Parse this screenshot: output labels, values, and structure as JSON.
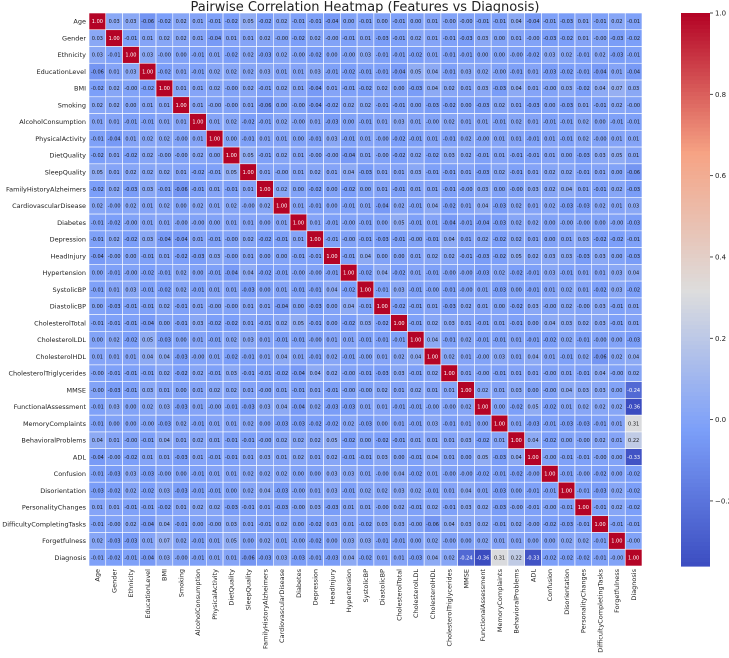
{
  "chart_data": {
    "type": "heatmap",
    "title": "Pairwise Correlation Heatmap (Features vs Diagnosis)",
    "labels": [
      "Age",
      "Gender",
      "Ethnicity",
      "EducationLevel",
      "BMI",
      "Smoking",
      "AlcoholConsumption",
      "PhysicalActivity",
      "DietQuality",
      "SleepQuality",
      "FamilyHistoryAlzheimers",
      "CardiovascularDisease",
      "Diabetes",
      "Depression",
      "HeadInjury",
      "Hypertension",
      "SystolicBP",
      "DiastolicBP",
      "CholesterolTotal",
      "CholesterolLDL",
      "CholesterolHDL",
      "CholesterolTriglycerides",
      "MMSE",
      "FunctionalAssessment",
      "MemoryComplaints",
      "BehavioralProblems",
      "ADL",
      "Confusion",
      "Disorientation",
      "PersonalityChanges",
      "DifficultyCompletingTasks",
      "Forgetfulness",
      "Diagnosis"
    ],
    "matrix": [
      [
        "1.00",
        "0.03",
        "0.03",
        "-0.06",
        "-0.02",
        "0.02",
        "0.01",
        "-0.01",
        "-0.02",
        "0.05",
        "-0.02",
        "0.02",
        "-0.01",
        "-0.01",
        "-0.04",
        "0.00",
        "-0.01",
        "0.00",
        "-0.01",
        "0.00",
        "0.01",
        "-0.00",
        "-0.00",
        "-0.01",
        "-0.01",
        "0.04",
        "-0.04",
        "-0.01",
        "-0.03",
        "0.01",
        "-0.01",
        "0.02",
        "-0.01"
      ],
      [
        "0.03",
        "1.00",
        "-0.01",
        "0.01",
        "0.02",
        "0.02",
        "0.01",
        "-0.04",
        "0.01",
        "0.01",
        "0.02",
        "-0.00",
        "-0.02",
        "0.02",
        "-0.00",
        "-0.01",
        "0.01",
        "-0.03",
        "-0.01",
        "0.02",
        "0.01",
        "-0.01",
        "-0.03",
        "0.03",
        "0.00",
        "0.01",
        "-0.00",
        "-0.03",
        "-0.02",
        "0.01",
        "-0.00",
        "-0.03",
        "-0.02"
      ],
      [
        "0.03",
        "-0.01",
        "1.00",
        "0.03",
        "-0.00",
        "0.00",
        "-0.01",
        "0.01",
        "-0.02",
        "0.02",
        "-0.03",
        "0.02",
        "-0.00",
        "-0.02",
        "0.00",
        "-0.00",
        "0.03",
        "-0.01",
        "-0.01",
        "-0.02",
        "0.01",
        "-0.01",
        "-0.01",
        "0.00",
        "0.00",
        "-0.00",
        "-0.02",
        "0.03",
        "0.02",
        "-0.01",
        "0.02",
        "-0.03",
        "-0.01"
      ],
      [
        "-0.06",
        "0.01",
        "0.03",
        "1.00",
        "-0.02",
        "0.01",
        "-0.01",
        "0.02",
        "0.02",
        "0.02",
        "0.03",
        "0.01",
        "0.01",
        "0.03",
        "-0.01",
        "-0.02",
        "-0.01",
        "-0.01",
        "-0.04",
        "0.05",
        "0.04",
        "-0.01",
        "0.03",
        "0.02",
        "-0.00",
        "-0.01",
        "0.01",
        "-0.03",
        "-0.02",
        "-0.01",
        "-0.04",
        "0.01",
        "-0.04"
      ],
      [
        "-0.02",
        "0.02",
        "-0.00",
        "-0.02",
        "1.00",
        "0.01",
        "0.01",
        "0.02",
        "-0.00",
        "0.02",
        "-0.01",
        "0.02",
        "0.01",
        "-0.04",
        "0.01",
        "-0.01",
        "-0.02",
        "0.02",
        "0.00",
        "-0.03",
        "0.04",
        "0.02",
        "0.01",
        "0.03",
        "-0.03",
        "0.04",
        "0.01",
        "-0.00",
        "0.03",
        "-0.02",
        "0.04",
        "0.07",
        "0.03"
      ],
      [
        "0.02",
        "0.02",
        "0.00",
        "0.01",
        "0.01",
        "1.00",
        "0.01",
        "-0.00",
        "-0.00",
        "0.01",
        "-0.06",
        "0.00",
        "-0.00",
        "-0.04",
        "-0.02",
        "0.02",
        "0.02",
        "-0.01",
        "-0.01",
        "0.00",
        "-0.03",
        "-0.02",
        "0.00",
        "-0.03",
        "0.02",
        "0.01",
        "-0.03",
        "0.00",
        "-0.03",
        "0.01",
        "-0.01",
        "0.02",
        "-0.00"
      ],
      [
        "0.01",
        "0.01",
        "-0.01",
        "-0.01",
        "0.01",
        "0.01",
        "1.00",
        "0.01",
        "0.02",
        "-0.02",
        "-0.01",
        "0.02",
        "-0.00",
        "0.01",
        "-0.03",
        "0.00",
        "-0.01",
        "0.01",
        "0.03",
        "0.01",
        "-0.00",
        "0.02",
        "0.01",
        "0.01",
        "-0.01",
        "0.02",
        "0.01",
        "-0.01",
        "-0.01",
        "0.02",
        "0.00",
        "-0.01",
        "-0.01"
      ],
      [
        "-0.01",
        "-0.04",
        "0.01",
        "0.02",
        "0.02",
        "-0.00",
        "0.01",
        "1.00",
        "0.00",
        "-0.01",
        "0.01",
        "0.01",
        "0.00",
        "-0.01",
        "0.03",
        "-0.01",
        "0.01",
        "-0.00",
        "-0.02",
        "-0.01",
        "0.01",
        "-0.01",
        "0.02",
        "-0.00",
        "0.01",
        "0.01",
        "-0.01",
        "0.01",
        "-0.01",
        "0.02",
        "-0.00",
        "0.01",
        "0.01"
      ],
      [
        "-0.02",
        "0.01",
        "-0.02",
        "0.02",
        "-0.00",
        "-0.00",
        "0.02",
        "0.00",
        "1.00",
        "0.05",
        "-0.01",
        "0.02",
        "0.01",
        "-0.00",
        "-0.00",
        "-0.04",
        "0.01",
        "-0.00",
        "-0.02",
        "0.02",
        "-0.02",
        "0.03",
        "0.02",
        "-0.01",
        "0.01",
        "-0.01",
        "-0.01",
        "0.01",
        "0.00",
        "-0.03",
        "0.03",
        "0.05",
        "0.01"
      ],
      [
        "0.05",
        "0.01",
        "0.02",
        "0.02",
        "0.02",
        "0.01",
        "-0.02",
        "-0.01",
        "0.05",
        "1.00",
        "0.01",
        "-0.00",
        "0.01",
        "0.02",
        "0.01",
        "0.04",
        "-0.03",
        "0.01",
        "0.01",
        "0.03",
        "-0.01",
        "-0.01",
        "0.01",
        "-0.03",
        "0.02",
        "-0.01",
        "0.01",
        "0.02",
        "0.02",
        "-0.01",
        "0.01",
        "0.00",
        "-0.06"
      ],
      [
        "-0.02",
        "0.02",
        "-0.03",
        "0.03",
        "-0.01",
        "-0.06",
        "-0.01",
        "0.01",
        "-0.01",
        "0.01",
        "1.00",
        "0.02",
        "0.00",
        "-0.02",
        "0.00",
        "-0.02",
        "0.00",
        "0.01",
        "-0.01",
        "0.01",
        "0.01",
        "-0.01",
        "-0.00",
        "0.03",
        "0.00",
        "-0.00",
        "0.03",
        "0.02",
        "0.04",
        "0.01",
        "-0.01",
        "0.02",
        "-0.03"
      ],
      [
        "0.02",
        "-0.00",
        "0.02",
        "0.01",
        "0.02",
        "0.00",
        "0.02",
        "0.01",
        "0.02",
        "-0.00",
        "0.02",
        "1.00",
        "0.01",
        "-0.01",
        "0.00",
        "-0.01",
        "0.01",
        "-0.04",
        "0.02",
        "-0.01",
        "0.04",
        "-0.02",
        "0.01",
        "0.04",
        "-0.03",
        "0.02",
        "0.01",
        "0.02",
        "-0.03",
        "-0.03",
        "0.02",
        "0.01",
        "0.03"
      ],
      [
        "-0.01",
        "-0.02",
        "-0.00",
        "0.01",
        "0.01",
        "-0.00",
        "-0.00",
        "0.00",
        "0.01",
        "0.01",
        "0.00",
        "0.01",
        "1.00",
        "0.01",
        "-0.01",
        "-0.00",
        "-0.01",
        "0.00",
        "0.05",
        "-0.01",
        "0.01",
        "-0.04",
        "-0.01",
        "-0.04",
        "-0.03",
        "0.02",
        "0.02",
        "0.00",
        "-0.00",
        "-0.00",
        "0.00",
        "-0.00",
        "-0.03"
      ],
      [
        "-0.01",
        "0.02",
        "-0.02",
        "0.03",
        "-0.04",
        "-0.04",
        "0.01",
        "-0.01",
        "-0.00",
        "0.02",
        "-0.02",
        "-0.01",
        "0.01",
        "1.00",
        "-0.01",
        "-0.00",
        "-0.01",
        "-0.03",
        "-0.01",
        "-0.00",
        "-0.01",
        "0.04",
        "0.01",
        "0.02",
        "-0.02",
        "0.02",
        "0.01",
        "0.00",
        "0.01",
        "0.03",
        "-0.02",
        "-0.02",
        "-0.01"
      ],
      [
        "-0.04",
        "-0.00",
        "0.00",
        "-0.01",
        "0.01",
        "-0.02",
        "-0.03",
        "0.03",
        "-0.00",
        "0.01",
        "0.00",
        "0.00",
        "-0.01",
        "-0.01",
        "1.00",
        "-0.01",
        "0.04",
        "0.00",
        "0.00",
        "0.01",
        "0.02",
        "0.02",
        "-0.01",
        "-0.03",
        "-0.02",
        "0.05",
        "0.02",
        "0.03",
        "0.03",
        "-0.03",
        "0.03",
        "0.00",
        "-0.03"
      ],
      [
        "0.00",
        "-0.01",
        "-0.00",
        "-0.02",
        "-0.01",
        "0.02",
        "0.00",
        "-0.01",
        "-0.04",
        "0.04",
        "-0.02",
        "-0.01",
        "-0.00",
        "-0.00",
        "-0.01",
        "1.00",
        "-0.02",
        "0.04",
        "-0.02",
        "0.01",
        "-0.01",
        "-0.00",
        "-0.00",
        "-0.03",
        "0.02",
        "-0.02",
        "-0.01",
        "0.03",
        "-0.01",
        "0.01",
        "0.01",
        "0.03",
        "0.04"
      ],
      [
        "-0.01",
        "0.01",
        "0.03",
        "-0.01",
        "-0.02",
        "0.02",
        "-0.01",
        "0.01",
        "0.01",
        "-0.03",
        "0.00",
        "0.01",
        "-0.01",
        "-0.01",
        "0.04",
        "-0.02",
        "1.00",
        "-0.01",
        "0.03",
        "-0.01",
        "-0.00",
        "-0.01",
        "-0.00",
        "0.01",
        "-0.03",
        "0.00",
        "-0.01",
        "0.01",
        "0.02",
        "0.01",
        "-0.02",
        "0.03",
        "-0.02"
      ],
      [
        "0.00",
        "-0.03",
        "-0.01",
        "-0.01",
        "0.02",
        "-0.01",
        "0.01",
        "-0.00",
        "-0.00",
        "0.01",
        "0.01",
        "-0.04",
        "0.00",
        "-0.03",
        "0.00",
        "0.04",
        "-0.01",
        "1.00",
        "-0.02",
        "-0.01",
        "0.01",
        "-0.03",
        "0.02",
        "0.01",
        "0.00",
        "-0.02",
        "0.03",
        "-0.00",
        "0.02",
        "-0.00",
        "0.03",
        "-0.01",
        "0.01"
      ],
      [
        "-0.01",
        "-0.01",
        "-0.01",
        "-0.04",
        "0.00",
        "-0.01",
        "0.03",
        "-0.02",
        "-0.02",
        "0.01",
        "-0.01",
        "0.02",
        "0.05",
        "-0.01",
        "0.00",
        "-0.02",
        "0.03",
        "-0.02",
        "1.00",
        "-0.01",
        "0.02",
        "0.03",
        "0.01",
        "-0.01",
        "0.01",
        "-0.01",
        "0.00",
        "0.04",
        "0.03",
        "0.02",
        "0.03",
        "-0.01",
        "0.01"
      ],
      [
        "0.00",
        "0.02",
        "-0.02",
        "0.05",
        "-0.03",
        "0.00",
        "0.01",
        "-0.01",
        "0.02",
        "0.03",
        "0.01",
        "-0.01",
        "-0.01",
        "-0.00",
        "0.01",
        "0.01",
        "-0.01",
        "-0.01",
        "-0.01",
        "1.00",
        "0.04",
        "-0.01",
        "0.02",
        "-0.01",
        "-0.01",
        "0.01",
        "-0.01",
        "-0.02",
        "0.02",
        "-0.01",
        "-0.00",
        "0.00",
        "-0.03"
      ],
      [
        "0.01",
        "0.01",
        "0.01",
        "0.04",
        "0.04",
        "-0.03",
        "-0.00",
        "0.01",
        "-0.02",
        "-0.01",
        "0.01",
        "0.04",
        "0.01",
        "-0.01",
        "0.02",
        "-0.01",
        "-0.00",
        "0.01",
        "0.02",
        "0.04",
        "1.00",
        "0.02",
        "0.01",
        "-0.00",
        "0.03",
        "0.01",
        "0.04",
        "0.01",
        "-0.01",
        "0.02",
        "-0.06",
        "0.02",
        "0.04"
      ],
      [
        "-0.00",
        "-0.01",
        "-0.01",
        "-0.01",
        "0.02",
        "-0.02",
        "0.02",
        "-0.01",
        "0.03",
        "-0.01",
        "-0.01",
        "-0.02",
        "-0.04",
        "0.04",
        "0.02",
        "-0.00",
        "-0.01",
        "-0.03",
        "0.03",
        "-0.01",
        "0.02",
        "1.00",
        "0.01",
        "-0.00",
        "-0.01",
        "0.01",
        "0.01",
        "-0.00",
        "0.01",
        "-0.01",
        "0.04",
        "-0.00",
        "0.02"
      ],
      [
        "-0.00",
        "-0.03",
        "-0.01",
        "0.03",
        "0.01",
        "0.00",
        "0.01",
        "0.02",
        "0.02",
        "0.01",
        "-0.00",
        "0.01",
        "-0.01",
        "0.01",
        "-0.01",
        "-0.00",
        "-0.00",
        "0.02",
        "0.01",
        "0.02",
        "0.01",
        "0.01",
        "1.00",
        "0.02",
        "0.01",
        "0.03",
        "0.00",
        "-0.00",
        "0.04",
        "0.03",
        "0.03",
        "0.00",
        "-0.24"
      ],
      [
        "-0.01",
        "0.03",
        "0.00",
        "0.02",
        "0.03",
        "-0.03",
        "0.01",
        "-0.00",
        "-0.01",
        "-0.03",
        "0.03",
        "0.04",
        "-0.04",
        "0.02",
        "-0.03",
        "-0.03",
        "0.01",
        "0.01",
        "-0.01",
        "-0.01",
        "-0.00",
        "-0.00",
        "0.02",
        "1.00",
        "0.00",
        "-0.02",
        "0.05",
        "-0.02",
        "0.01",
        "0.02",
        "0.02",
        "0.02",
        "-0.36"
      ],
      [
        "-0.01",
        "0.00",
        "0.00",
        "-0.00",
        "-0.03",
        "0.02",
        "-0.01",
        "0.01",
        "0.01",
        "0.02",
        "0.00",
        "-0.03",
        "-0.03",
        "-0.02",
        "-0.02",
        "0.02",
        "-0.03",
        "0.00",
        "0.01",
        "-0.01",
        "0.03",
        "-0.01",
        "0.01",
        "0.00",
        "1.00",
        "0.01",
        "-0.03",
        "-0.01",
        "-0.03",
        "-0.03",
        "-0.01",
        "0.01",
        "0.31"
      ],
      [
        "0.04",
        "0.01",
        "-0.00",
        "-0.01",
        "0.04",
        "0.01",
        "0.02",
        "0.01",
        "-0.01",
        "-0.01",
        "-0.00",
        "0.02",
        "0.02",
        "0.02",
        "0.05",
        "-0.02",
        "0.00",
        "-0.02",
        "-0.01",
        "0.01",
        "0.01",
        "0.01",
        "0.03",
        "-0.02",
        "0.01",
        "1.00",
        "0.04",
        "-0.02",
        "0.00",
        "-0.00",
        "0.02",
        "0.01",
        "0.22"
      ],
      [
        "-0.04",
        "-0.00",
        "-0.02",
        "0.01",
        "0.01",
        "-0.03",
        "0.01",
        "-0.01",
        "-0.01",
        "0.01",
        "0.03",
        "0.01",
        "0.02",
        "0.01",
        "0.02",
        "-0.01",
        "-0.01",
        "0.03",
        "0.00",
        "-0.01",
        "0.04",
        "0.01",
        "0.00",
        "0.05",
        "-0.03",
        "0.04",
        "1.00",
        "-0.00",
        "-0.01",
        "-0.01",
        "-0.00",
        "0.00",
        "-0.33"
      ],
      [
        "-0.01",
        "-0.03",
        "0.03",
        "-0.03",
        "-0.00",
        "0.00",
        "-0.01",
        "0.01",
        "0.01",
        "0.02",
        "0.02",
        "0.02",
        "0.00",
        "0.00",
        "0.03",
        "0.03",
        "0.01",
        "-0.00",
        "0.04",
        "-0.02",
        "0.01",
        "-0.00",
        "-0.00",
        "-0.02",
        "-0.01",
        "-0.02",
        "-0.00",
        "1.00",
        "-0.01",
        "-0.00",
        "-0.02",
        "0.00",
        "-0.02"
      ],
      [
        "-0.03",
        "-0.02",
        "0.02",
        "-0.02",
        "0.03",
        "-0.03",
        "-0.01",
        "-0.01",
        "0.00",
        "0.02",
        "0.04",
        "-0.03",
        "-0.00",
        "0.01",
        "0.03",
        "-0.01",
        "0.02",
        "0.02",
        "0.03",
        "0.02",
        "-0.01",
        "0.01",
        "0.04",
        "0.01",
        "-0.03",
        "0.00",
        "-0.01",
        "-0.01",
        "1.00",
        "-0.01",
        "-0.03",
        "0.02",
        "-0.02"
      ],
      [
        "0.01",
        "0.01",
        "-0.01",
        "-0.01",
        "-0.02",
        "0.01",
        "0.02",
        "0.02",
        "-0.03",
        "-0.01",
        "0.01",
        "-0.03",
        "-0.00",
        "0.03",
        "-0.03",
        "0.01",
        "0.01",
        "-0.00",
        "0.02",
        "-0.01",
        "0.02",
        "-0.01",
        "0.03",
        "0.02",
        "-0.03",
        "-0.00",
        "-0.01",
        "-0.00",
        "-0.01",
        "1.00",
        "-0.01",
        "0.02",
        "-0.02"
      ],
      [
        "-0.01",
        "-0.00",
        "0.02",
        "-0.04",
        "0.04",
        "-0.01",
        "0.00",
        "-0.00",
        "0.03",
        "0.01",
        "-0.01",
        "0.02",
        "0.00",
        "-0.02",
        "0.03",
        "0.01",
        "-0.02",
        "0.03",
        "0.03",
        "-0.00",
        "-0.06",
        "0.04",
        "0.03",
        "0.02",
        "-0.01",
        "0.02",
        "-0.00",
        "-0.02",
        "-0.03",
        "-0.01",
        "1.00",
        "-0.01",
        "-0.01"
      ],
      [
        "0.02",
        "-0.03",
        "-0.03",
        "0.01",
        "0.07",
        "0.02",
        "-0.01",
        "0.01",
        "0.05",
        "0.00",
        "0.02",
        "0.01",
        "-0.00",
        "-0.02",
        "0.00",
        "0.03",
        "0.03",
        "-0.01",
        "-0.01",
        "0.00",
        "0.02",
        "-0.00",
        "0.00",
        "0.02",
        "0.01",
        "0.01",
        "0.00",
        "0.00",
        "0.02",
        "0.02",
        "-0.01",
        "1.00",
        "-0.00"
      ],
      [
        "-0.01",
        "-0.02",
        "-0.01",
        "-0.04",
        "0.03",
        "-0.00",
        "-0.01",
        "0.01",
        "0.01",
        "-0.06",
        "-0.03",
        "0.03",
        "-0.03",
        "-0.01",
        "-0.03",
        "0.04",
        "-0.02",
        "0.01",
        "0.01",
        "-0.03",
        "0.04",
        "0.02",
        "-0.24",
        "-0.36",
        "0.31",
        "0.22",
        "-0.33",
        "-0.02",
        "-0.02",
        "-0.02",
        "-0.01",
        "-0.00",
        "1.00"
      ]
    ],
    "vmin": -0.36,
    "vmax": 1.0,
    "colormap": "coolwarm",
    "colorbar_ticks": [
      "1.0",
      "0.8",
      "0.6",
      "0.4",
      "0.2",
      "0.0",
      "−0.2"
    ],
    "colorbar_tick_values": [
      1.0,
      0.8,
      0.6,
      0.4,
      0.2,
      0.0,
      -0.2
    ]
  }
}
